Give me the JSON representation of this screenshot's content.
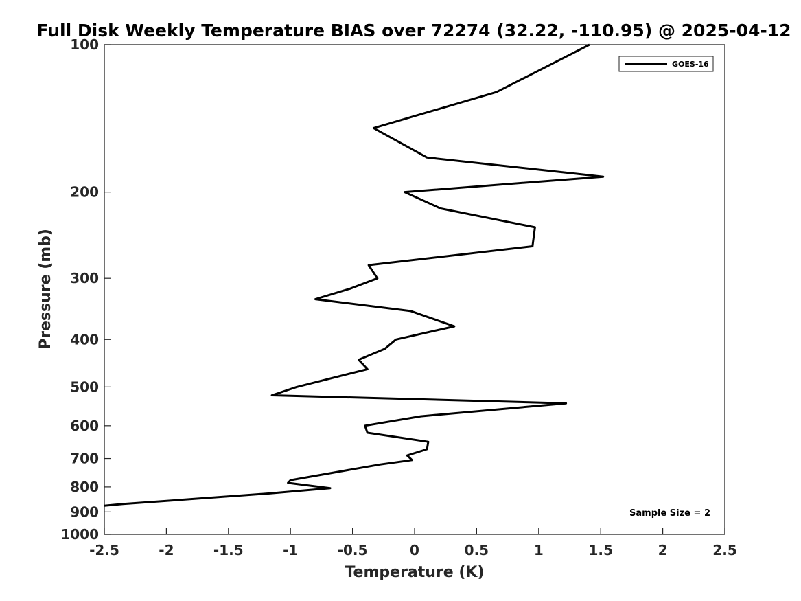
{
  "chart_data": {
    "type": "line",
    "title": "Full Disk Weekly Temperature BIAS over 72274 (32.22, -110.95) @ 2025-04-12",
    "xlabel": "Temperature (K)",
    "ylabel": "Pressure (mb)",
    "xlim": [
      -2.5,
      2.5
    ],
    "ylim": [
      100,
      1000
    ],
    "yscale": "log",
    "y_reversed": true,
    "xticks": [
      "-2.5",
      "-2",
      "-1.5",
      "-1",
      "-0.5",
      "0",
      "0.5",
      "1",
      "1.5",
      "2",
      "2.5"
    ],
    "xtick_values": [
      -2.5,
      -2,
      -1.5,
      -1,
      -0.5,
      0,
      0.5,
      1,
      1.5,
      2,
      2.5
    ],
    "yticks": [
      "100",
      "200",
      "300",
      "400",
      "500",
      "600",
      "700",
      "800",
      "900",
      "1000"
    ],
    "ytick_values": [
      100,
      200,
      300,
      400,
      500,
      600,
      700,
      800,
      900,
      1000
    ],
    "grid": false,
    "legend": {
      "position": "top-right",
      "entries": [
        "GOES-16"
      ]
    },
    "annotation": "Sample Size = 2",
    "series": [
      {
        "name": "GOES-16",
        "color": "#000000",
        "points": [
          {
            "x": 1.41,
            "y": 100
          },
          {
            "x": 0.66,
            "y": 125
          },
          {
            "x": -0.33,
            "y": 148
          },
          {
            "x": 0.1,
            "y": 170
          },
          {
            "x": 1.52,
            "y": 186
          },
          {
            "x": -0.08,
            "y": 200
          },
          {
            "x": 0.21,
            "y": 216
          },
          {
            "x": 0.97,
            "y": 236
          },
          {
            "x": 0.95,
            "y": 258
          },
          {
            "x": -0.37,
            "y": 282
          },
          {
            "x": -0.3,
            "y": 300
          },
          {
            "x": -0.52,
            "y": 315
          },
          {
            "x": -0.8,
            "y": 331
          },
          {
            "x": -0.03,
            "y": 350
          },
          {
            "x": 0.32,
            "y": 376
          },
          {
            "x": -0.15,
            "y": 400
          },
          {
            "x": -0.24,
            "y": 418
          },
          {
            "x": -0.45,
            "y": 440
          },
          {
            "x": -0.38,
            "y": 460
          },
          {
            "x": -0.95,
            "y": 500
          },
          {
            "x": -1.15,
            "y": 520
          },
          {
            "x": 1.22,
            "y": 540
          },
          {
            "x": 0.05,
            "y": 574
          },
          {
            "x": -0.4,
            "y": 600
          },
          {
            "x": -0.38,
            "y": 620
          },
          {
            "x": 0.11,
            "y": 647
          },
          {
            "x": 0.1,
            "y": 670
          },
          {
            "x": -0.06,
            "y": 690
          },
          {
            "x": -0.02,
            "y": 705
          },
          {
            "x": -0.28,
            "y": 720
          },
          {
            "x": -1.0,
            "y": 775
          },
          {
            "x": -1.02,
            "y": 785
          },
          {
            "x": -0.68,
            "y": 805
          },
          {
            "x": -1.17,
            "y": 825
          },
          {
            "x": -2.35,
            "y": 867
          },
          {
            "x": -2.5,
            "y": 874
          }
        ]
      }
    ]
  }
}
